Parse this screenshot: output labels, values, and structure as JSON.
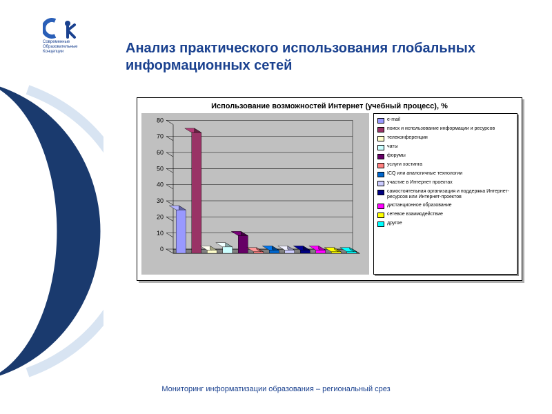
{
  "logo": {
    "line1": "Современные",
    "line2": "Образовательные",
    "line3": "Концепции",
    "c_color": "#2a5fb8",
    "k_color": "#1a418f"
  },
  "title": "Анализ практического использования глобальных информационных сетей",
  "footer": "Мониторинг информатизации образования – региональный срез",
  "chart": {
    "type": "bar-3d",
    "title": "Использование возможностей Интернет (учебный процесс), %",
    "background_color": "#c0c0c0",
    "wall_color": "#c0c0c0",
    "floor_color": "#808080",
    "grid_color": "#000000",
    "frame_color": "#000000",
    "shadow_color": "#909090",
    "ylim": [
      0,
      80
    ],
    "ytick_step": 10,
    "bar_width": 0.62,
    "depth": 10,
    "axis_fontsize": 9,
    "legend_fontsize": 7,
    "title_fontsize": 11,
    "series": [
      {
        "label": "e-mail",
        "value": 27,
        "color": "#9999ff"
      },
      {
        "label": "поиск и использование информации и ресурсов",
        "value": 75,
        "color": "#993366"
      },
      {
        "label": "телеконференции",
        "value": 2,
        "color": "#ffffcc"
      },
      {
        "label": "чаты",
        "value": 4,
        "color": "#ccffff"
      },
      {
        "label": "форумы",
        "value": 11,
        "color": "#660066"
      },
      {
        "label": "услуги хостинга",
        "value": 1,
        "color": "#ff8080"
      },
      {
        "label": "ICQ или аналогичные технологии",
        "value": 2,
        "color": "#0066cc"
      },
      {
        "label": "участие в Интернет проектах",
        "value": 2,
        "color": "#ccccff"
      },
      {
        "label": "самостоятельная организация и поддержка Интернет-ресурсов или Интернет-проектов",
        "value": 2,
        "color": "#000080"
      },
      {
        "label": "дистанционное образование",
        "value": 2,
        "color": "#ff00ff"
      },
      {
        "label": "сетевое взаимодействие",
        "value": 1,
        "color": "#ffff00"
      },
      {
        "label": "другое",
        "value": 1,
        "color": "#00ffff"
      }
    ]
  },
  "decor": {
    "arc_dark": "#1a3a6e",
    "arc_light": "#d8e4f2"
  }
}
